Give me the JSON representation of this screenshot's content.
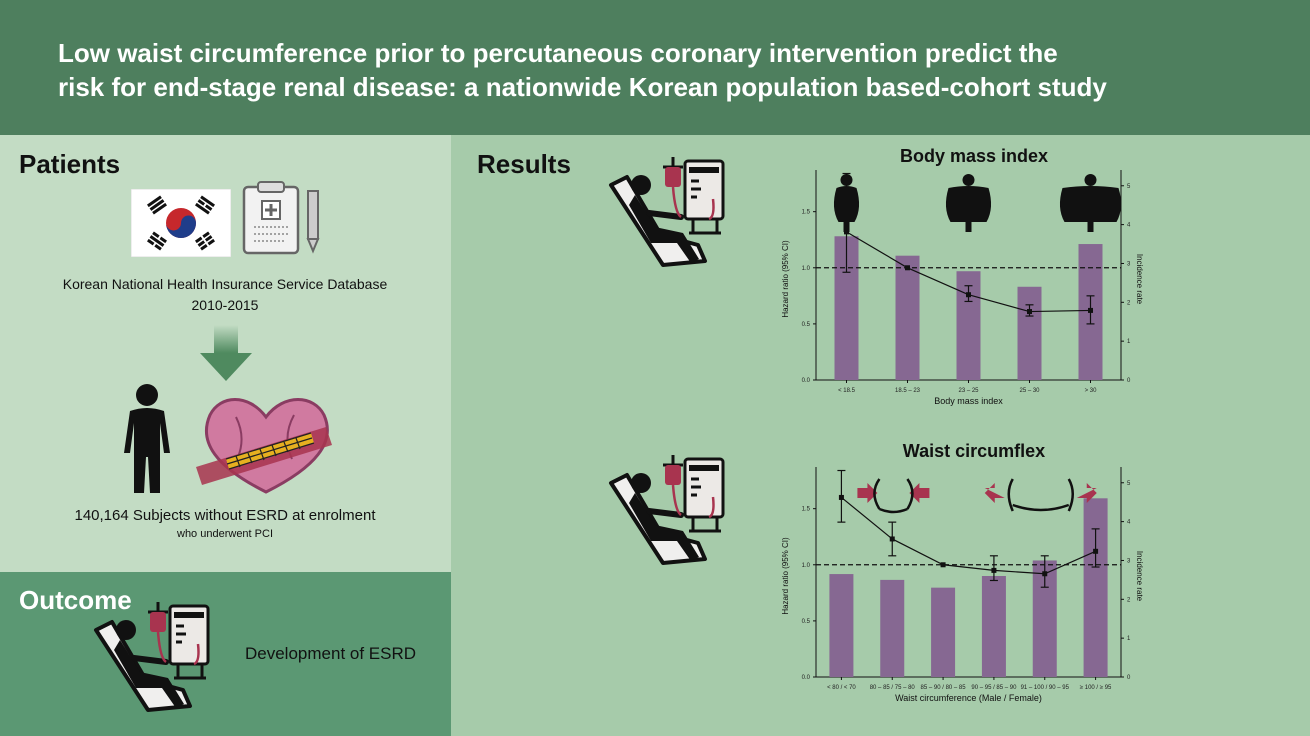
{
  "header": {
    "title_line1": "Low waist circumference prior to percutaneous coronary intervention predict the",
    "title_line2": "risk for end-stage renal disease: a nationwide Korean population based-cohort study"
  },
  "patients": {
    "title": "Patients",
    "database": "Korean National Health Insurance Service Database",
    "years": "2010-2015",
    "subjects": "140,164 Subjects without ESRD at enrolment",
    "subjects_note": "who underwent PCI"
  },
  "outcome": {
    "title": "Outcome",
    "text": "Development of ESRD"
  },
  "results": {
    "title": "Results"
  },
  "colors": {
    "header": "#4e7f5e",
    "bar": "#866892",
    "outcome": "#5b9873",
    "arrow": "#a8344f"
  },
  "chart_data": [
    {
      "type": "bar+line",
      "title": "Body mass index",
      "xlabel": "Body mass index",
      "ylabel": "Hazard ratio (95% CI)",
      "y2label": "Incidence rate",
      "categories": [
        "< 18.5",
        "18.5 – 23",
        "23 – 25",
        "25 – 30",
        "> 30"
      ],
      "ylim": [
        0,
        1.8
      ],
      "y_ticks": [
        "0.0",
        "0.5",
        "1.0",
        "1.5"
      ],
      "y2lim": [
        0,
        5.2
      ],
      "y2_ticks": [
        "0",
        "1",
        "2",
        "3",
        "4",
        "5"
      ],
      "reference_line": 1.0,
      "incidence": [
        3.7,
        3.2,
        2.8,
        2.4,
        3.5
      ],
      "hazard_ratio": [
        1.32,
        1.0,
        0.76,
        0.61,
        0.62
      ],
      "ci_low": [
        0.96,
        1.0,
        0.7,
        0.57,
        0.5
      ],
      "ci_high": [
        1.84,
        1.0,
        0.84,
        0.67,
        0.75
      ]
    },
    {
      "type": "bar+line",
      "title": "Waist circumflex",
      "xlabel": "Waist circumference (Male / Female)",
      "ylabel": "Hazard ratio (95% CI)",
      "y2label": "Incidence rate",
      "categories": [
        "< 80 / < 70",
        "80 – 85 / 75 – 80",
        "85 – 90 / 80 – 85",
        "90 – 95 / 85 – 90",
        "91 – 100 / 90 – 95",
        "≥ 100 / ≥ 95"
      ],
      "ylim": [
        0,
        1.8
      ],
      "y_ticks": [
        "0.0",
        "0.5",
        "1.0",
        "1.5"
      ],
      "y2lim": [
        0,
        5.2
      ],
      "y2_ticks": [
        "0",
        "1",
        "2",
        "3",
        "4",
        "5"
      ],
      "reference_line": 1.0,
      "incidence": [
        2.65,
        2.5,
        2.3,
        2.6,
        3.0,
        4.6
      ],
      "hazard_ratio": [
        1.6,
        1.23,
        1.0,
        0.95,
        0.92,
        1.12
      ],
      "ci_low": [
        1.38,
        1.08,
        1.0,
        0.86,
        0.8,
        0.98
      ],
      "ci_high": [
        1.84,
        1.38,
        1.0,
        1.08,
        1.08,
        1.32
      ]
    }
  ]
}
